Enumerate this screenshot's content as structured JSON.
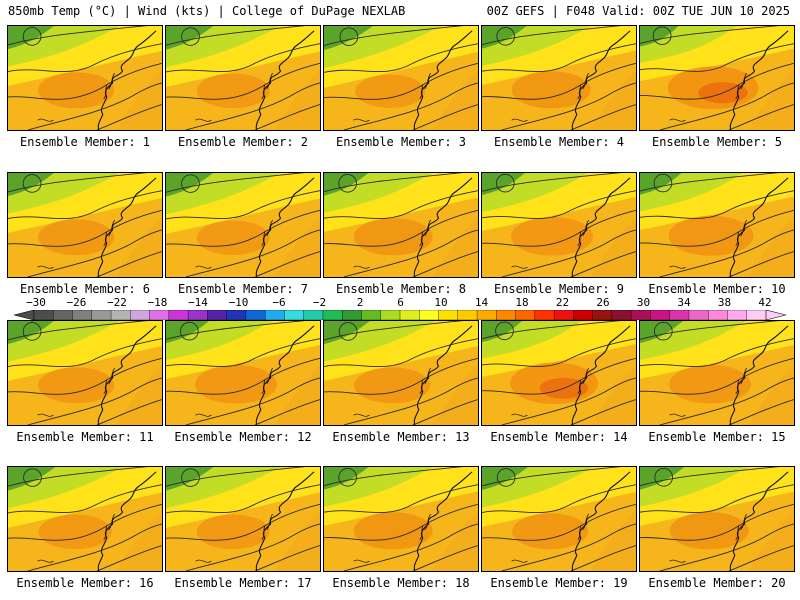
{
  "header": {
    "title_left": "850mb Temp (°C) | Wind (kts) | College of DuPage NEXLAB",
    "title_right": "00Z GEFS | F048 Valid: 00Z TUE JUN 10 2025"
  },
  "panels": [
    {
      "label": "Ensemble Member: 1",
      "warmth": 0.45
    },
    {
      "label": "Ensemble Member: 2",
      "warmth": 0.4
    },
    {
      "label": "Ensemble Member: 3",
      "warmth": 0.35
    },
    {
      "label": "Ensemble Member: 4",
      "warmth": 0.5
    },
    {
      "label": "Ensemble Member: 5",
      "warmth": 0.7
    },
    {
      "label": "Ensemble Member: 6",
      "warmth": 0.45
    },
    {
      "label": "Ensemble Member: 7",
      "warmth": 0.4
    },
    {
      "label": "Ensemble Member: 8",
      "warmth": 0.5
    },
    {
      "label": "Ensemble Member: 9",
      "warmth": 0.55
    },
    {
      "label": "Ensemble Member: 10",
      "warmth": 0.6
    },
    {
      "label": "Ensemble Member: 11",
      "warmth": 0.45
    },
    {
      "label": "Ensemble Member: 12",
      "warmth": 0.55
    },
    {
      "label": "Ensemble Member: 13",
      "warmth": 0.45
    },
    {
      "label": "Ensemble Member: 14",
      "warmth": 0.65
    },
    {
      "label": "Ensemble Member: 15",
      "warmth": 0.55
    },
    {
      "label": "Ensemble Member: 16",
      "warmth": 0.4
    },
    {
      "label": "Ensemble Member: 17",
      "warmth": 0.4
    },
    {
      "label": "Ensemble Member: 18",
      "warmth": 0.5
    },
    {
      "label": "Ensemble Member: 19",
      "warmth": 0.45
    },
    {
      "label": "Ensemble Member: 20",
      "warmth": 0.5
    }
  ],
  "colorbar": {
    "tick_labels": [
      "−30",
      "−26",
      "−22",
      "−18",
      "−14",
      "−10",
      "−6",
      "−2",
      "2",
      "6",
      "10",
      "14",
      "18",
      "22",
      "26",
      "30",
      "34",
      "38",
      "42"
    ],
    "colors": [
      "#4d4d4d",
      "#666666",
      "#808080",
      "#999999",
      "#b3b3b3",
      "#cfa6e0",
      "#e070e8",
      "#cc33dd",
      "#9933cc",
      "#5522aa",
      "#2233bb",
      "#1166dd",
      "#22aaee",
      "#33dddd",
      "#22ccaa",
      "#22bb55",
      "#339933",
      "#66bb22",
      "#aadd22",
      "#ddee22",
      "#ffff22",
      "#ffe000",
      "#ffcc00",
      "#ffaa00",
      "#ff8800",
      "#ff6600",
      "#ff3300",
      "#ee1111",
      "#cc0000",
      "#991111",
      "#881133",
      "#aa1155",
      "#cc1188",
      "#dd33aa",
      "#ee66cc",
      "#ff88dd",
      "#ffaaee",
      "#ffccf5"
    ]
  }
}
